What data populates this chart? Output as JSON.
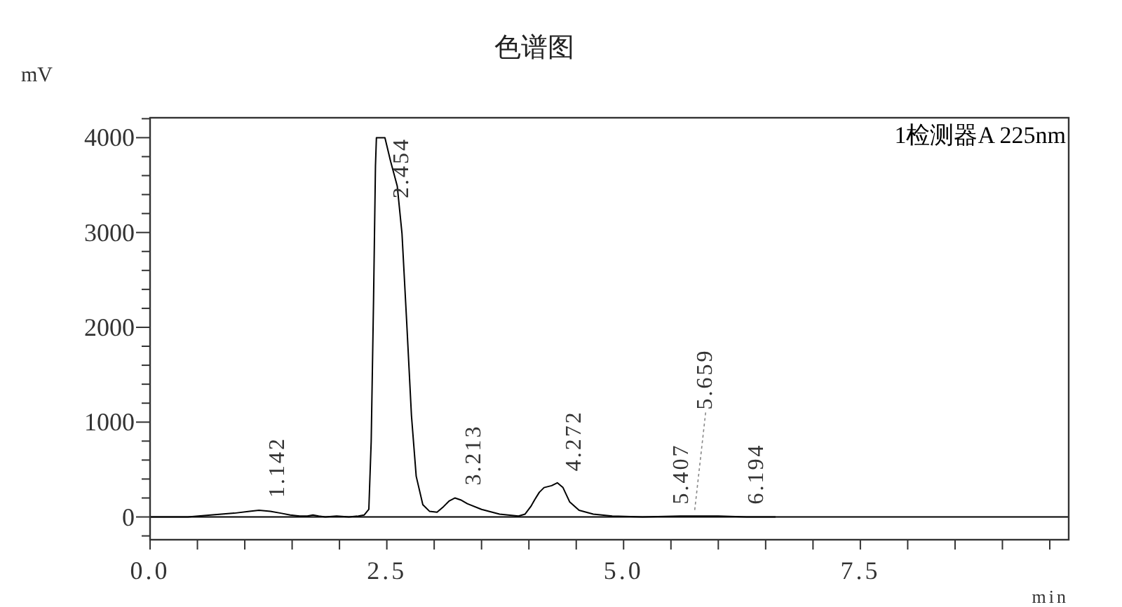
{
  "chart_data": {
    "type": "line",
    "title": "色谱图",
    "ylabel": "mV",
    "xlabel": "min",
    "x": [
      0,
      0.4,
      0.64,
      0.89,
      1.05,
      1.15,
      1.27,
      1.38,
      1.48,
      1.58,
      1.66,
      1.72,
      1.78,
      1.85,
      1.97,
      2.1,
      2.2,
      2.26,
      2.31,
      2.335,
      2.36,
      2.38,
      2.39,
      2.48,
      2.54,
      2.61,
      2.66,
      2.71,
      2.76,
      2.81,
      2.88,
      2.95,
      3.03,
      3.1,
      3.16,
      3.22,
      3.28,
      3.35,
      3.5,
      3.69,
      3.89,
      3.96,
      4.02,
      4.06,
      4.11,
      4.16,
      4.24,
      4.3,
      4.36,
      4.43,
      4.53,
      4.68,
      4.88,
      5.2,
      5.6,
      6.0,
      6.3,
      6.6
    ],
    "series": [
      {
        "name": "1检测器A 225nm",
        "color": "#000000",
        "values": [
          0,
          0,
          20,
          40,
          60,
          70,
          60,
          40,
          20,
          10,
          10,
          20,
          10,
          0,
          10,
          0,
          10,
          20,
          80,
          800,
          2300,
          3700,
          4000,
          4000,
          3750,
          3490,
          2990,
          2050,
          1070,
          430,
          130,
          60,
          50,
          110,
          170,
          200,
          180,
          140,
          80,
          30,
          10,
          30,
          110,
          180,
          260,
          310,
          330,
          360,
          310,
          160,
          70,
          30,
          10,
          0,
          10,
          10,
          0,
          0
        ]
      }
    ],
    "xlim": [
      0,
      9.7
    ],
    "ylim": [
      -240,
      4210
    ],
    "xticks": [
      {
        "value": 0,
        "label": "0.0"
      },
      {
        "value": 0.5,
        "label": null
      },
      {
        "value": 1,
        "label": null
      },
      {
        "value": 1.5,
        "label": null
      },
      {
        "value": 2,
        "label": null
      },
      2.5,
      {
        "value": 3,
        "label": null
      },
      {
        "value": 3.5,
        "label": null
      },
      {
        "value": 4,
        "label": null
      },
      {
        "value": 4.5,
        "label": null
      },
      {
        "value": 5,
        "label": "5.0"
      },
      {
        "value": 5.5,
        "label": null
      },
      {
        "value": 6,
        "label": null
      },
      {
        "value": 6.5,
        "label": null
      },
      {
        "value": 7,
        "label": null
      },
      7.5,
      {
        "value": 8,
        "label": null
      },
      {
        "value": 8.5,
        "label": null
      },
      {
        "value": 9,
        "label": null
      },
      {
        "value": 9.5,
        "label": null
      }
    ],
    "yticks": [
      {
        "value": -200,
        "label": null
      },
      0,
      {
        "value": 200,
        "label": null
      },
      {
        "value": 400,
        "label": null
      },
      {
        "value": 600,
        "label": null
      },
      {
        "value": 800,
        "label": null
      },
      1000,
      {
        "value": 1200,
        "label": null
      },
      {
        "value": 1400,
        "label": null
      },
      {
        "value": 1600,
        "label": null
      },
      {
        "value": 1800,
        "label": null
      },
      2000,
      {
        "value": 2200,
        "label": null
      },
      {
        "value": 2400,
        "label": null
      },
      {
        "value": 2600,
        "label": null
      },
      {
        "value": 2800,
        "label": null
      },
      3000,
      {
        "value": 3200,
        "label": null
      },
      {
        "value": 3400,
        "label": null
      },
      {
        "value": 3600,
        "label": null
      },
      {
        "value": 3800,
        "label": null
      },
      4000,
      {
        "value": 4200,
        "label": null
      }
    ],
    "grid": false,
    "legend": "top right",
    "marker": "none",
    "line_style": "solid",
    "ref_lines": [
      {
        "axis": "y",
        "value": 0,
        "color": "#000000"
      }
    ],
    "annotations": [
      {
        "text": "1.142",
        "x": 1.142,
        "y": 70
      },
      {
        "text": "2.454",
        "x": 2.454,
        "y": 4000
      },
      {
        "text": "3.213",
        "x": 3.213,
        "y": 200
      },
      {
        "text": "4.272",
        "x": 4.272,
        "y": 350
      },
      {
        "text": "5.407",
        "x": 5.407,
        "y": 0
      },
      {
        "text": "5.659",
        "x": 5.659,
        "y": 0
      },
      {
        "text": "6.194",
        "x": 6.194,
        "y": 0
      }
    ]
  }
}
